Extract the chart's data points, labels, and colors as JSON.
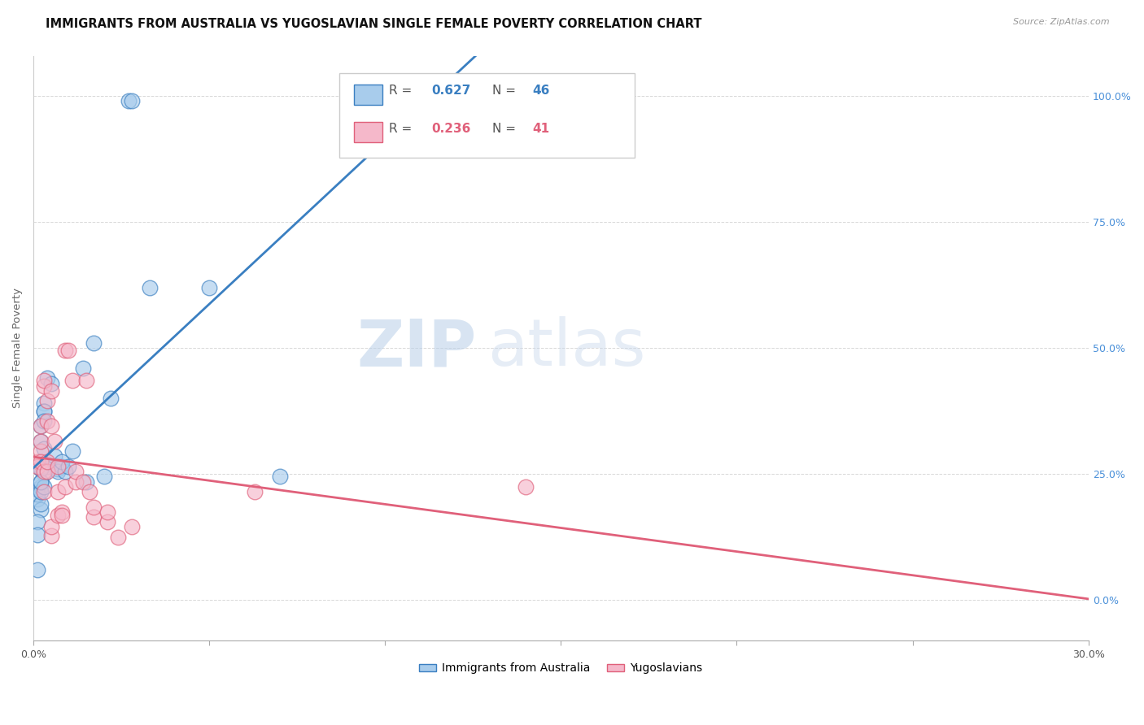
{
  "title": "IMMIGRANTS FROM AUSTRALIA VS YUGOSLAVIAN SINGLE FEMALE POVERTY CORRELATION CHART",
  "source": "Source: ZipAtlas.com",
  "ylabel": "Single Female Poverty",
  "legend_blue_R": "0.627",
  "legend_blue_N": "46",
  "legend_pink_R": "0.236",
  "legend_pink_N": "41",
  "legend_blue_label": "Immigrants from Australia",
  "legend_pink_label": "Yugoslavians",
  "blue_color": "#a8ccec",
  "pink_color": "#f5b8ca",
  "trendline_blue": "#3a7fc1",
  "trendline_pink": "#e0607a",
  "watermark_zip": "ZIP",
  "watermark_atlas": "atlas",
  "blue_scatter": [
    [
      0.001,
      0.2
    ],
    [
      0.002,
      0.18
    ],
    [
      0.001,
      0.155
    ],
    [
      0.002,
      0.315
    ],
    [
      0.003,
      0.39
    ],
    [
      0.003,
      0.375
    ],
    [
      0.002,
      0.345
    ],
    [
      0.001,
      0.22
    ],
    [
      0.002,
      0.225
    ],
    [
      0.003,
      0.25
    ],
    [
      0.004,
      0.27
    ],
    [
      0.003,
      0.3
    ],
    [
      0.002,
      0.235
    ],
    [
      0.001,
      0.21
    ],
    [
      0.002,
      0.19
    ],
    [
      0.002,
      0.215
    ],
    [
      0.003,
      0.225
    ],
    [
      0.002,
      0.265
    ],
    [
      0.002,
      0.26
    ],
    [
      0.001,
      0.13
    ],
    [
      0.001,
      0.06
    ],
    [
      0.004,
      0.265
    ],
    [
      0.002,
      0.26
    ],
    [
      0.002,
      0.235
    ],
    [
      0.003,
      0.375
    ],
    [
      0.003,
      0.355
    ],
    [
      0.004,
      0.44
    ],
    [
      0.005,
      0.43
    ],
    [
      0.006,
      0.285
    ],
    [
      0.007,
      0.26
    ],
    [
      0.008,
      0.265
    ],
    [
      0.007,
      0.255
    ],
    [
      0.009,
      0.255
    ],
    [
      0.008,
      0.275
    ],
    [
      0.01,
      0.265
    ],
    [
      0.011,
      0.295
    ],
    [
      0.014,
      0.46
    ],
    [
      0.015,
      0.235
    ],
    [
      0.017,
      0.51
    ],
    [
      0.02,
      0.245
    ],
    [
      0.022,
      0.4
    ],
    [
      0.027,
      0.99
    ],
    [
      0.028,
      0.99
    ],
    [
      0.033,
      0.62
    ],
    [
      0.05,
      0.62
    ],
    [
      0.07,
      0.245
    ]
  ],
  "pink_scatter": [
    [
      0.001,
      0.275
    ],
    [
      0.001,
      0.265
    ],
    [
      0.002,
      0.295
    ],
    [
      0.002,
      0.315
    ],
    [
      0.002,
      0.345
    ],
    [
      0.002,
      0.275
    ],
    [
      0.003,
      0.425
    ],
    [
      0.003,
      0.435
    ],
    [
      0.003,
      0.255
    ],
    [
      0.003,
      0.215
    ],
    [
      0.004,
      0.255
    ],
    [
      0.004,
      0.275
    ],
    [
      0.004,
      0.355
    ],
    [
      0.004,
      0.395
    ],
    [
      0.005,
      0.415
    ],
    [
      0.005,
      0.345
    ],
    [
      0.005,
      0.128
    ],
    [
      0.005,
      0.145
    ],
    [
      0.006,
      0.315
    ],
    [
      0.007,
      0.265
    ],
    [
      0.007,
      0.215
    ],
    [
      0.007,
      0.168
    ],
    [
      0.008,
      0.175
    ],
    [
      0.008,
      0.168
    ],
    [
      0.009,
      0.225
    ],
    [
      0.009,
      0.495
    ],
    [
      0.01,
      0.495
    ],
    [
      0.011,
      0.435
    ],
    [
      0.012,
      0.235
    ],
    [
      0.012,
      0.255
    ],
    [
      0.014,
      0.235
    ],
    [
      0.015,
      0.435
    ],
    [
      0.016,
      0.215
    ],
    [
      0.017,
      0.165
    ],
    [
      0.017,
      0.185
    ],
    [
      0.021,
      0.155
    ],
    [
      0.021,
      0.175
    ],
    [
      0.024,
      0.125
    ],
    [
      0.028,
      0.145
    ],
    [
      0.063,
      0.215
    ],
    [
      0.14,
      0.225
    ]
  ],
  "xlim": [
    0.0,
    0.3
  ],
  "ylim": [
    -0.08,
    1.08
  ],
  "yticks": [
    0.0,
    0.25,
    0.5,
    0.75,
    1.0
  ],
  "grid_color": "#d8d8d8",
  "background_color": "#ffffff",
  "title_fontsize": 10.5,
  "axis_label_fontsize": 9.5,
  "tick_fontsize": 9,
  "legend_fontsize": 11
}
